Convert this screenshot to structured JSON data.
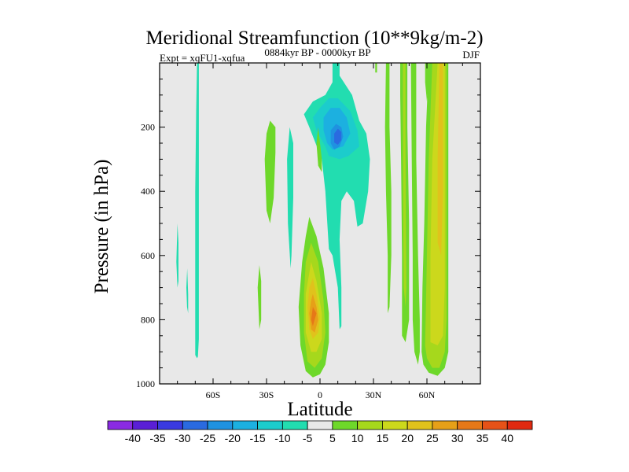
{
  "chart_data": {
    "type": "heatmap",
    "title": "Meridional Streamfunction (10**9kg/m-2)",
    "subtitle_left": "Expt = xqFU1-xqfua",
    "subtitle_center": "0884kyr BP - 0000kyr BP",
    "subtitle_right": "DJF",
    "xlabel": "Latitude",
    "ylabel": "Pressure (in hPa)",
    "xlim": [
      -90,
      90
    ],
    "ylim": [
      1000,
      0
    ],
    "x_ticks": [
      {
        "value": -60,
        "label": "60S"
      },
      {
        "value": -30,
        "label": "30S"
      },
      {
        "value": 0,
        "label": "0"
      },
      {
        "value": 30,
        "label": "30N"
      },
      {
        "value": 60,
        "label": "60N"
      }
    ],
    "y_ticks": [
      {
        "value": 200,
        "label": "200"
      },
      {
        "value": 400,
        "label": "400"
      },
      {
        "value": 600,
        "label": "600"
      },
      {
        "value": 800,
        "label": "800"
      },
      {
        "value": 1000,
        "label": "1000"
      }
    ],
    "colorbar": {
      "levels": [
        -40,
        -35,
        -30,
        -25,
        -20,
        -15,
        -10,
        -5,
        5,
        10,
        15,
        20,
        25,
        30,
        35,
        40
      ],
      "labels": [
        "-40",
        "-35",
        "-30",
        "-25",
        "-20",
        "-15",
        "-10",
        "-5",
        "5",
        "10",
        "15",
        "20",
        "25",
        "30",
        "35",
        "40"
      ],
      "colors": [
        "#8a2be2",
        "#5a1fd6",
        "#3a3ae0",
        "#2a6ae0",
        "#1f92e0",
        "#1cb0e0",
        "#1ccccc",
        "#22ddb0",
        "#e8e8e8",
        "#6ed82a",
        "#a6d81c",
        "#ccd81c",
        "#e0c21c",
        "#e6a018",
        "#e67818",
        "#e65218",
        "#e02a10"
      ]
    },
    "background_color": "#e8e8e8",
    "regions": [
      {
        "level": "-5",
        "color": "#22ddb0",
        "points": [
          [
            -69,
            0
          ],
          [
            -68,
            0
          ],
          [
            -68,
            180
          ],
          [
            -68,
            400
          ],
          [
            -68,
            640
          ],
          [
            -68,
            860
          ],
          [
            -68.5,
            915
          ],
          [
            -69,
            920
          ],
          [
            -70,
            910
          ],
          [
            -70,
            700
          ],
          [
            -70,
            400
          ],
          [
            -69.5,
            150
          ]
        ]
      },
      {
        "level": "-5",
        "color": "#22ddb0",
        "points": [
          [
            -80,
            500
          ],
          [
            -79.4,
            560
          ],
          [
            -79.4,
            680
          ],
          [
            -80,
            700
          ],
          [
            -80.6,
            620
          ]
        ]
      },
      {
        "level": "-5",
        "color": "#22ddb0",
        "points": [
          [
            -74.5,
            640
          ],
          [
            -74,
            720
          ],
          [
            -74,
            780
          ],
          [
            -74.6,
            760
          ],
          [
            -75,
            700
          ]
        ]
      },
      {
        "level": "10",
        "color": "#6ed82a",
        "points": [
          [
            -28,
            180
          ],
          [
            -25,
            200
          ],
          [
            -25,
            280
          ],
          [
            -26,
            420
          ],
          [
            -28,
            500
          ],
          [
            -30,
            460
          ],
          [
            -31,
            300
          ],
          [
            -30,
            220
          ]
        ]
      },
      {
        "level": "-5",
        "color": "#22ddb0",
        "points": [
          [
            -17,
            200
          ],
          [
            -15,
            250
          ],
          [
            -15,
            420
          ],
          [
            -16,
            600
          ],
          [
            -16.5,
            640
          ],
          [
            -18,
            500
          ],
          [
            -18.5,
            300
          ]
        ]
      },
      {
        "level": "10",
        "color": "#6ed82a",
        "points": [
          [
            -34,
            630
          ],
          [
            -33,
            680
          ],
          [
            -33,
            800
          ],
          [
            -34,
            830
          ],
          [
            -35,
            700
          ]
        ]
      },
      {
        "level": "-5",
        "color": "#22ddb0",
        "points": [
          [
            7,
            0
          ],
          [
            11,
            0
          ],
          [
            11,
            40
          ],
          [
            18,
            100
          ],
          [
            22,
            180
          ],
          [
            26,
            220
          ],
          [
            28,
            300
          ],
          [
            27,
            400
          ],
          [
            24,
            500
          ],
          [
            21,
            510
          ],
          [
            19,
            430
          ],
          [
            15,
            400
          ],
          [
            12,
            430
          ],
          [
            11,
            550
          ],
          [
            12,
            700
          ],
          [
            12,
            820
          ],
          [
            11,
            830
          ],
          [
            10,
            700
          ],
          [
            7,
            600
          ],
          [
            5,
            580
          ],
          [
            3,
            400
          ],
          [
            1,
            300
          ],
          [
            -6,
            200
          ],
          [
            -9,
            160
          ],
          [
            -4,
            120
          ],
          [
            3,
            100
          ],
          [
            7,
            60
          ]
        ]
      },
      {
        "level": "-10",
        "color": "#1ccccc",
        "points": [
          [
            0,
            140
          ],
          [
            5,
            110
          ],
          [
            10,
            110
          ],
          [
            17,
            150
          ],
          [
            21,
            210
          ],
          [
            22,
            260
          ],
          [
            16,
            290
          ],
          [
            11,
            300
          ],
          [
            5,
            290
          ],
          [
            3,
            260
          ],
          [
            -2,
            210
          ],
          [
            -4,
            170
          ]
        ]
      },
      {
        "level": "-15",
        "color": "#1cb0e0",
        "points": [
          [
            2,
            170
          ],
          [
            6,
            140
          ],
          [
            11,
            140
          ],
          [
            15,
            170
          ],
          [
            17,
            220
          ],
          [
            13,
            260
          ],
          [
            7,
            270
          ],
          [
            4,
            250
          ],
          [
            2,
            210
          ]
        ]
      },
      {
        "level": "-20",
        "color": "#1f92e0",
        "points": [
          [
            6,
            210
          ],
          [
            9,
            190
          ],
          [
            12,
            200
          ],
          [
            13,
            230
          ],
          [
            11,
            260
          ],
          [
            8,
            270
          ],
          [
            6,
            250
          ]
        ]
      },
      {
        "level": "-25",
        "color": "#2a6ae0",
        "points": [
          [
            8,
            220
          ],
          [
            10,
            205
          ],
          [
            12,
            215
          ],
          [
            12,
            240
          ],
          [
            10,
            255
          ],
          [
            8,
            248
          ]
        ]
      },
      {
        "level": "10",
        "color": "#6ed82a",
        "points": [
          [
            -6,
            480
          ],
          [
            -2,
            540
          ],
          [
            2,
            640
          ],
          [
            5,
            780
          ],
          [
            5,
            870
          ],
          [
            3,
            940
          ],
          [
            0,
            970
          ],
          [
            -4,
            980
          ],
          [
            -8,
            960
          ],
          [
            -11,
            880
          ],
          [
            -12,
            760
          ],
          [
            -10,
            620
          ],
          [
            -8,
            540
          ]
        ]
      },
      {
        "level": "15",
        "color": "#a6d81c",
        "points": [
          [
            -5,
            560
          ],
          [
            -1,
            620
          ],
          [
            2,
            740
          ],
          [
            3,
            840
          ],
          [
            1,
            920
          ],
          [
            -3,
            950
          ],
          [
            -7,
            930
          ],
          [
            -9,
            840
          ],
          [
            -9,
            720
          ],
          [
            -8,
            620
          ]
        ]
      },
      {
        "level": "20",
        "color": "#ccd81c",
        "points": [
          [
            -5,
            620
          ],
          [
            -2,
            680
          ],
          [
            1,
            780
          ],
          [
            1,
            860
          ],
          [
            -2,
            900
          ],
          [
            -5,
            900
          ],
          [
            -8,
            840
          ],
          [
            -8,
            720
          ]
        ]
      },
      {
        "level": "25",
        "color": "#e0c21c",
        "points": [
          [
            -4,
            670
          ],
          [
            -2,
            720
          ],
          [
            0,
            790
          ],
          [
            -1,
            840
          ],
          [
            -4,
            860
          ],
          [
            -6,
            830
          ],
          [
            -7,
            760
          ],
          [
            -6,
            700
          ]
        ]
      },
      {
        "level": "30",
        "color": "#e6a018",
        "points": [
          [
            -4,
            720
          ],
          [
            -2,
            760
          ],
          [
            -1,
            800
          ],
          [
            -3,
            840
          ],
          [
            -5,
            830
          ],
          [
            -6,
            780
          ],
          [
            -5,
            740
          ]
        ]
      },
      {
        "level": "35",
        "color": "#e67818",
        "points": [
          [
            -4,
            760
          ],
          [
            -2,
            780
          ],
          [
            -3,
            800
          ],
          [
            -4,
            820
          ],
          [
            -5,
            800
          ]
        ]
      },
      {
        "level": "10",
        "color": "#6ed82a",
        "points": [
          [
            -1,
            200
          ],
          [
            1,
            300
          ],
          [
            1,
            340
          ],
          [
            -1,
            320
          ],
          [
            -2,
            250
          ]
        ]
      },
      {
        "level": "10",
        "color": "#6ed82a",
        "points": [
          [
            31,
            0
          ],
          [
            32,
            0
          ],
          [
            32,
            30
          ],
          [
            31,
            30
          ]
        ]
      },
      {
        "level": "10",
        "color": "#6ed82a",
        "points": [
          [
            37,
            0
          ],
          [
            39,
            0
          ],
          [
            39,
            200
          ],
          [
            40,
            400
          ],
          [
            40,
            600
          ],
          [
            39,
            760
          ],
          [
            38,
            780
          ],
          [
            38,
            600
          ],
          [
            37,
            400
          ],
          [
            36.5,
            200
          ]
        ]
      },
      {
        "level": "10",
        "color": "#6ed82a",
        "points": [
          [
            45,
            0
          ],
          [
            49,
            0
          ],
          [
            49,
            200
          ],
          [
            50,
            500
          ],
          [
            50,
            800
          ],
          [
            48,
            870
          ],
          [
            46,
            850
          ],
          [
            46,
            600
          ],
          [
            45.5,
            300
          ],
          [
            45,
            100
          ]
        ]
      },
      {
        "level": "15",
        "color": "#a6d81c",
        "points": [
          [
            46.5,
            0
          ],
          [
            48,
            0
          ],
          [
            48,
            300
          ],
          [
            48.5,
            700
          ],
          [
            48,
            760
          ],
          [
            47,
            700
          ],
          [
            46.6,
            400
          ]
        ]
      },
      {
        "level": "10",
        "color": "#6ed82a",
        "points": [
          [
            51,
            0
          ],
          [
            54,
            0
          ],
          [
            54,
            300
          ],
          [
            55,
            600
          ],
          [
            56,
            800
          ],
          [
            56,
            900
          ],
          [
            55,
            940
          ],
          [
            53,
            900
          ],
          [
            52,
            800
          ],
          [
            52,
            600
          ],
          [
            51.5,
            300
          ]
        ]
      },
      {
        "level": "10",
        "color": "#6ed82a",
        "points": [
          [
            61,
            0
          ],
          [
            72,
            0
          ],
          [
            72,
            400
          ],
          [
            72,
            800
          ],
          [
            72,
            900
          ],
          [
            70,
            950
          ],
          [
            66,
            975
          ],
          [
            61,
            965
          ],
          [
            58,
            940
          ],
          [
            57,
            900
          ],
          [
            57.5,
            700
          ],
          [
            58.5,
            500
          ],
          [
            59.5,
            200
          ]
        ]
      },
      {
        "level": "15",
        "color": "#a6d81c",
        "points": [
          [
            63,
            0
          ],
          [
            71,
            0
          ],
          [
            71,
            400
          ],
          [
            71,
            800
          ],
          [
            70,
            900
          ],
          [
            67,
            950
          ],
          [
            63,
            950
          ],
          [
            60,
            920
          ],
          [
            59,
            880
          ],
          [
            60,
            600
          ],
          [
            61,
            300
          ]
        ]
      },
      {
        "level": "20",
        "color": "#ccd81c",
        "points": [
          [
            66,
            0
          ],
          [
            70,
            0
          ],
          [
            70,
            400
          ],
          [
            70,
            700
          ],
          [
            69,
            850
          ],
          [
            66,
            880
          ],
          [
            62,
            870
          ],
          [
            62,
            600
          ],
          [
            63,
            300
          ]
        ]
      },
      {
        "level": "25",
        "color": "#e0c21c",
        "points": [
          [
            67,
            0
          ],
          [
            69,
            0
          ],
          [
            69,
            400
          ],
          [
            68,
            600
          ],
          [
            66,
            560
          ],
          [
            66,
            300
          ]
        ]
      },
      {
        "level": "10",
        "color": "#6ed82a",
        "points": [
          [
            59,
            0
          ],
          [
            61,
            0
          ],
          [
            61,
            60
          ],
          [
            60,
            120
          ],
          [
            59,
            60
          ]
        ]
      }
    ]
  }
}
